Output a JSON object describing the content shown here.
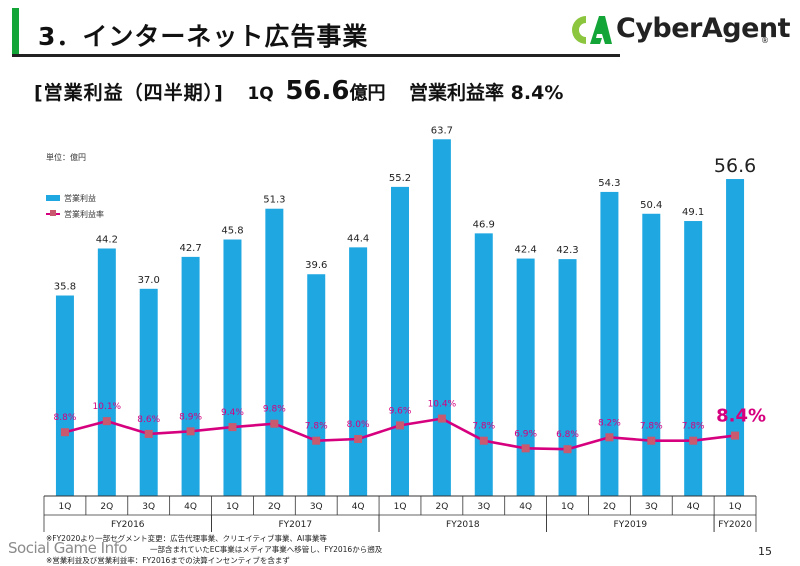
{
  "slide": {
    "title": "3．インターネット広告事業",
    "page_number": "15",
    "watermark": "Social Game Info"
  },
  "logo": {
    "text": "CyberAgent",
    "reg_mark": "®"
  },
  "headline": {
    "label": "[営業利益（四半期）]",
    "quarter": "1Q",
    "value": "56.6",
    "unit": "億円",
    "rate_text": "営業利益率 8.4%"
  },
  "chart_labels": {
    "unit": "単位：億円",
    "legend_bar": "営業利益",
    "legend_line": "営業利益率"
  },
  "chart_data": {
    "type": "bar",
    "categories": [
      "1Q",
      "2Q",
      "3Q",
      "4Q",
      "1Q",
      "2Q",
      "3Q",
      "4Q",
      "1Q",
      "2Q",
      "3Q",
      "4Q",
      "1Q",
      "2Q",
      "3Q",
      "4Q",
      "1Q"
    ],
    "groups": [
      {
        "label": "FY2016",
        "from": 0,
        "to": 3
      },
      {
        "label": "FY2017",
        "from": 4,
        "to": 7
      },
      {
        "label": "FY2018",
        "from": 8,
        "to": 11
      },
      {
        "label": "FY2019",
        "from": 12,
        "to": 15
      },
      {
        "label": "FY2020",
        "from": 16,
        "to": 16
      }
    ],
    "series": [
      {
        "name": "営業利益",
        "type": "bar",
        "values": [
          35.8,
          44.2,
          37.0,
          42.7,
          45.8,
          51.3,
          39.6,
          44.4,
          55.2,
          63.7,
          46.9,
          42.4,
          42.3,
          54.3,
          50.4,
          49.1,
          56.6
        ],
        "labels": [
          "35.8",
          "44.2",
          "37.0",
          "42.7",
          "45.8",
          "51.3",
          "39.6",
          "44.4",
          "55.2",
          "63.7",
          "46.9",
          "42.4",
          "42.3",
          "54.3",
          "50.4",
          "49.1",
          "56.6"
        ],
        "color": "#1fa7e1"
      },
      {
        "name": "営業利益率",
        "type": "line",
        "values": [
          8.8,
          10.1,
          8.6,
          8.9,
          9.4,
          9.8,
          7.8,
          8.0,
          9.6,
          10.4,
          7.8,
          6.9,
          6.8,
          8.2,
          7.8,
          7.8,
          8.4
        ],
        "labels": [
          "8.8%",
          "10.1%",
          "8.6%",
          "8.9%",
          "9.4%",
          "9.8%",
          "7.8%",
          "8.0%",
          "9.6%",
          "10.4%",
          "7.8%",
          "6.9%",
          "6.8%",
          "8.2%",
          "7.8%",
          "7.8%",
          "8.4%"
        ],
        "color": "#d6007f",
        "marker_color": "#c8596e"
      }
    ],
    "ylim": [
      0,
      70
    ],
    "grid": false,
    "legend": "top-left"
  },
  "footnotes": [
    "※FY2020より一部セグメント変更：広告代理事業、クリエイティブ事業、AI事業等",
    "一部含まれていたEC事業はメディア事業へ移管し、FY2016から遡及",
    "※営業利益及び営業利益率：FY2016までの決算インセンティブを含まず"
  ],
  "colors": {
    "accent_green": "#13a538",
    "logo_lime": "#8cc63f",
    "bar_blue": "#1fa7e1",
    "line_pink": "#d6007f"
  }
}
